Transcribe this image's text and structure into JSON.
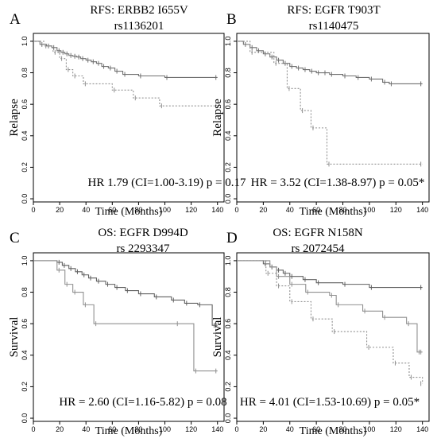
{
  "chart_data": [
    {
      "type": "line",
      "panel_letter": "A",
      "title": "RFS: ERBB2 I655V",
      "subtitle": "rs1136201",
      "xlabel": "Time (Months)",
      "ylabel": "Relapse",
      "annotation": "HR 1.79 (CI=1.00-3.19) p = 0.17",
      "xlim": [
        0,
        145
      ],
      "ylim": [
        -0.02,
        1.05
      ],
      "xticks": [
        0,
        20,
        40,
        60,
        80,
        100,
        120,
        140
      ],
      "yticks": [
        0.0,
        0.2,
        0.4,
        0.6,
        0.8,
        1.0
      ],
      "series": [
        {
          "style": "solid",
          "color": "#707070",
          "x": [
            0,
            5,
            10,
            14,
            18,
            21,
            24,
            27,
            30,
            33,
            36,
            40,
            44,
            48,
            52,
            57,
            62,
            68,
            80,
            100,
            140
          ],
          "y": [
            1.0,
            0.98,
            0.97,
            0.96,
            0.94,
            0.93,
            0.92,
            0.91,
            0.905,
            0.9,
            0.89,
            0.88,
            0.87,
            0.86,
            0.84,
            0.83,
            0.81,
            0.79,
            0.78,
            0.77,
            0.77
          ]
        },
        {
          "style": "dotted",
          "color": "#909090",
          "x": [
            0,
            8,
            15,
            20,
            25,
            30,
            38,
            60,
            76,
            96,
            140
          ],
          "y": [
            1.0,
            0.97,
            0.93,
            0.89,
            0.82,
            0.78,
            0.73,
            0.69,
            0.64,
            0.59,
            0.59
          ]
        }
      ]
    },
    {
      "type": "line",
      "panel_letter": "B",
      "title": "RFS: EGFR T903T",
      "subtitle": "rs1140475",
      "xlabel": "Time (Months)",
      "ylabel": "Relapse",
      "annotation": "HR = 3.52 (CI=1.38-8.97) p = 0.05*",
      "xlim": [
        0,
        145
      ],
      "ylim": [
        -0.02,
        1.05
      ],
      "xticks": [
        0,
        20,
        40,
        60,
        80,
        100,
        120,
        140
      ],
      "yticks": [
        0.0,
        0.2,
        0.4,
        0.6,
        0.8,
        1.0
      ],
      "series": [
        {
          "style": "solid",
          "color": "#707070",
          "x": [
            0,
            5,
            10,
            15,
            20,
            25,
            30,
            35,
            40,
            45,
            50,
            55,
            60,
            65,
            70,
            80,
            90,
            100,
            110,
            115,
            140
          ],
          "y": [
            1.0,
            0.98,
            0.96,
            0.94,
            0.92,
            0.9,
            0.88,
            0.86,
            0.84,
            0.83,
            0.82,
            0.81,
            0.8,
            0.8,
            0.79,
            0.78,
            0.77,
            0.76,
            0.74,
            0.73,
            0.73
          ]
        },
        {
          "style": "dotted",
          "color": "#909090",
          "x": [
            0,
            10,
            28,
            38,
            48,
            56,
            68,
            140
          ],
          "y": [
            1.0,
            0.93,
            0.86,
            0.7,
            0.56,
            0.45,
            0.22,
            0.22
          ]
        }
      ]
    },
    {
      "type": "line",
      "panel_letter": "C",
      "title": "OS: EGFR D994D",
      "subtitle": "rs 2293347",
      "xlabel": "Time (Months)",
      "ylabel": "Survival",
      "annotation": "HR = 2.60 (CI=1.16-5.82) p = 0.08",
      "xlim": [
        0,
        145
      ],
      "ylim": [
        -0.02,
        1.05
      ],
      "xticks": [
        0,
        20,
        40,
        60,
        80,
        100,
        120,
        140
      ],
      "yticks": [
        0.0,
        0.2,
        0.4,
        0.6,
        0.8,
        1.0
      ],
      "series": [
        {
          "style": "solid",
          "color": "#606060",
          "x": [
            0,
            18,
            22,
            27,
            32,
            37,
            42,
            48,
            55,
            62,
            70,
            80,
            92,
            105,
            115,
            125,
            136,
            140
          ],
          "y": [
            1.0,
            0.99,
            0.97,
            0.95,
            0.93,
            0.91,
            0.89,
            0.87,
            0.85,
            0.83,
            0.81,
            0.79,
            0.77,
            0.75,
            0.73,
            0.72,
            0.59,
            0.59
          ]
        },
        {
          "style": "solid",
          "color": "#909090",
          "x": [
            0,
            18,
            24,
            30,
            38,
            46,
            108,
            122,
            140
          ],
          "y": [
            1.0,
            0.94,
            0.85,
            0.8,
            0.72,
            0.6,
            0.6,
            0.3,
            0.3
          ]
        }
      ]
    },
    {
      "type": "line",
      "panel_letter": "D",
      "title": "OS: EGFR N158N",
      "subtitle": "rs 2072454",
      "xlabel": "Time (Months)",
      "ylabel": "Survival",
      "annotation": "HR = 4.01 (CI=1.53-10.69) p = 0.05*",
      "xlim": [
        0,
        145
      ],
      "ylim": [
        -0.02,
        1.05
      ],
      "xticks": [
        0,
        20,
        40,
        60,
        80,
        100,
        120,
        140
      ],
      "yticks": [
        0.0,
        0.2,
        0.4,
        0.6,
        0.8,
        1.0
      ],
      "series": [
        {
          "style": "solid",
          "color": "#606060",
          "x": [
            0,
            20,
            25,
            30,
            35,
            40,
            50,
            60,
            80,
            100,
            140
          ],
          "y": [
            1.0,
            0.98,
            0.96,
            0.94,
            0.92,
            0.9,
            0.88,
            0.86,
            0.85,
            0.83,
            0.83
          ]
        },
        {
          "style": "solid",
          "color": "#909090",
          "x": [
            0,
            25,
            30,
            40,
            52,
            70,
            75,
            95,
            110,
            128,
            136,
            140
          ],
          "y": [
            1.0,
            0.96,
            0.9,
            0.85,
            0.8,
            0.78,
            0.72,
            0.68,
            0.64,
            0.6,
            0.42,
            0.42
          ]
        },
        {
          "style": "dotted",
          "color": "#909090",
          "x": [
            0,
            22,
            30,
            40,
            56,
            72,
            98,
            118,
            130,
            140
          ],
          "y": [
            1.0,
            0.92,
            0.84,
            0.74,
            0.63,
            0.55,
            0.45,
            0.35,
            0.26,
            0.22
          ]
        }
      ]
    }
  ]
}
